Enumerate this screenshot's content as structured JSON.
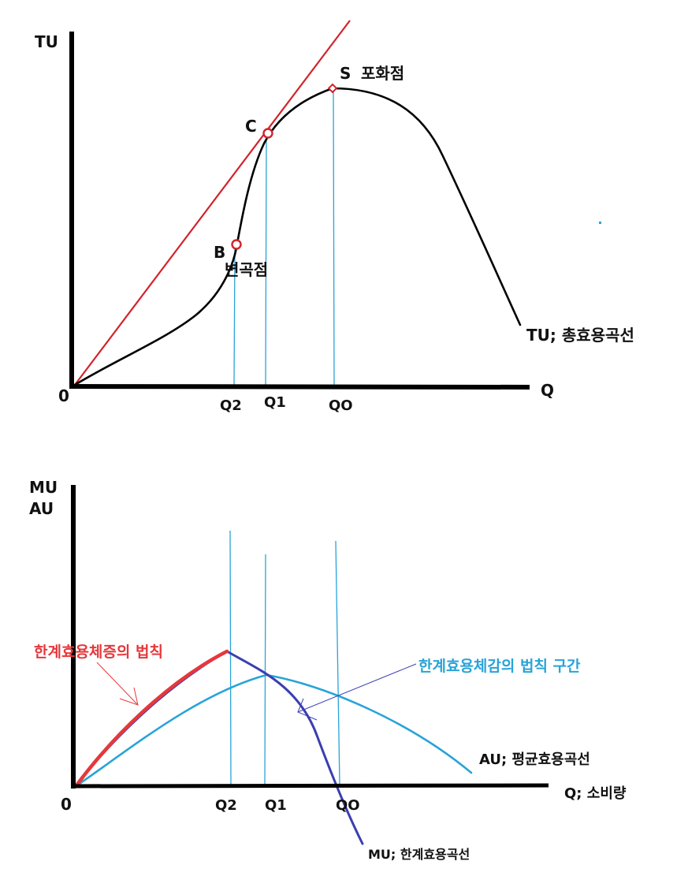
{
  "top_chart": {
    "y_axis_label": "TU",
    "x_axis_label": "Q",
    "origin_label": "0",
    "point_b_label": "B",
    "point_c_label": "C",
    "point_s_label": "S",
    "saturation_label": "포화점",
    "inflection_label": "변곡점",
    "tu_curve_label": "TU; 총효용곡선",
    "x_ticks": [
      "Q2",
      "Q1",
      "QO"
    ]
  },
  "bottom_chart": {
    "y_axis_label_top": "MU",
    "y_axis_label_bottom": "AU",
    "x_axis_label": "Q; 소비량",
    "origin_label": "0",
    "x_ticks": [
      "Q2",
      "Q1",
      "QO"
    ],
    "increasing_law_label": "한계효용체증의 법칙",
    "diminishing_law_label": "한계효용체감의 법칙 구간",
    "au_curve_label": "AU; 평균효용곡선",
    "mu_curve_label": "MU; 한계효용곡선"
  },
  "colors": {
    "axis": "#000000",
    "tu_curve": "#000000",
    "tangent_line": "#d2232a",
    "guide_line": "#29a3d8",
    "au_curve": "#29a3d8",
    "mu_curve": "#3a3fb0",
    "increasing_segment": "#e5383b",
    "increasing_label": "#e5383b",
    "diminishing_label": "#29a3d8"
  }
}
